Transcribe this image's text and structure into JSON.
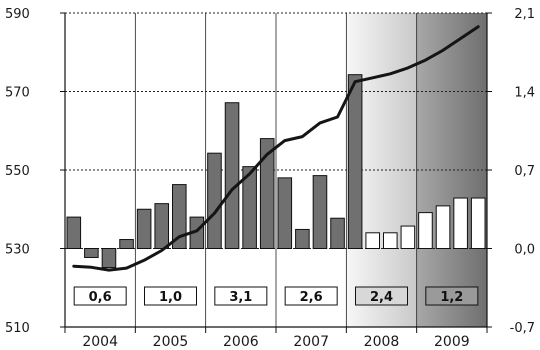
{
  "chart_data": {
    "type": "bar",
    "title": "",
    "xlabel": "",
    "ylabel": "",
    "years": [
      "2004",
      "2005",
      "2006",
      "2007",
      "2008",
      "2009"
    ],
    "left_axis": {
      "ticks": [
        "590",
        "570",
        "550",
        "530",
        "510"
      ],
      "ylim": [
        510,
        590
      ]
    },
    "right_axis": {
      "ticks": [
        "2,1",
        "1,4",
        "0,7",
        "0,0",
        "-0,7"
      ],
      "ylim": [
        -0.7,
        2.1
      ]
    },
    "grid": true,
    "forecast_shading_years": [
      "2008",
      "2009"
    ],
    "series": [
      {
        "kind": "bar",
        "axis": "right",
        "x": [
          "2004 Q1",
          "2004 Q2",
          "2004 Q3",
          "2004 Q4",
          "2005 Q1",
          "2005 Q2",
          "2005 Q3",
          "2005 Q4",
          "2006 Q1",
          "2006 Q2",
          "2006 Q3",
          "2006 Q4",
          "2007 Q1",
          "2007 Q2",
          "2007 Q3",
          "2007 Q4",
          "2008 Q1",
          "2008 Q2",
          "2008 Q3",
          "2008 Q4",
          "2009 Q1",
          "2009 Q2",
          "2009 Q3",
          "2009 Q4"
        ],
        "values": [
          0.28,
          -0.08,
          -0.17,
          0.08,
          0.35,
          0.4,
          0.57,
          0.28,
          0.85,
          1.3,
          0.73,
          0.98,
          0.63,
          0.17,
          0.65,
          0.27,
          1.55,
          0.14,
          0.14,
          0.2,
          0.32,
          0.38,
          0.45,
          0.45
        ],
        "forecast_from_index": 17
      },
      {
        "kind": "line",
        "axis": "left",
        "values": [
          525.5,
          525.2,
          524.5,
          525.0,
          527.0,
          529.5,
          533.0,
          534.5,
          539.0,
          545.0,
          549.0,
          554.0,
          557.5,
          558.5,
          562.0,
          563.5,
          572.5,
          573.5,
          574.5,
          576.0,
          578.0,
          580.5,
          583.5,
          586.5
        ]
      }
    ],
    "annual_labels": [
      "0,6",
      "1,0",
      "3,1",
      "2,6",
      "2,4",
      "1,2"
    ],
    "colors": {
      "bar_fill": "#707070",
      "forecast_bar_fill": "#ffffff",
      "line": "#151515",
      "shade_light": "#f2f2f2",
      "shade_dark": "#8c8c8c",
      "annual_box_fill_2008": "#d8d8d8",
      "annual_box_fill_2009": "#9a9a9a"
    }
  }
}
